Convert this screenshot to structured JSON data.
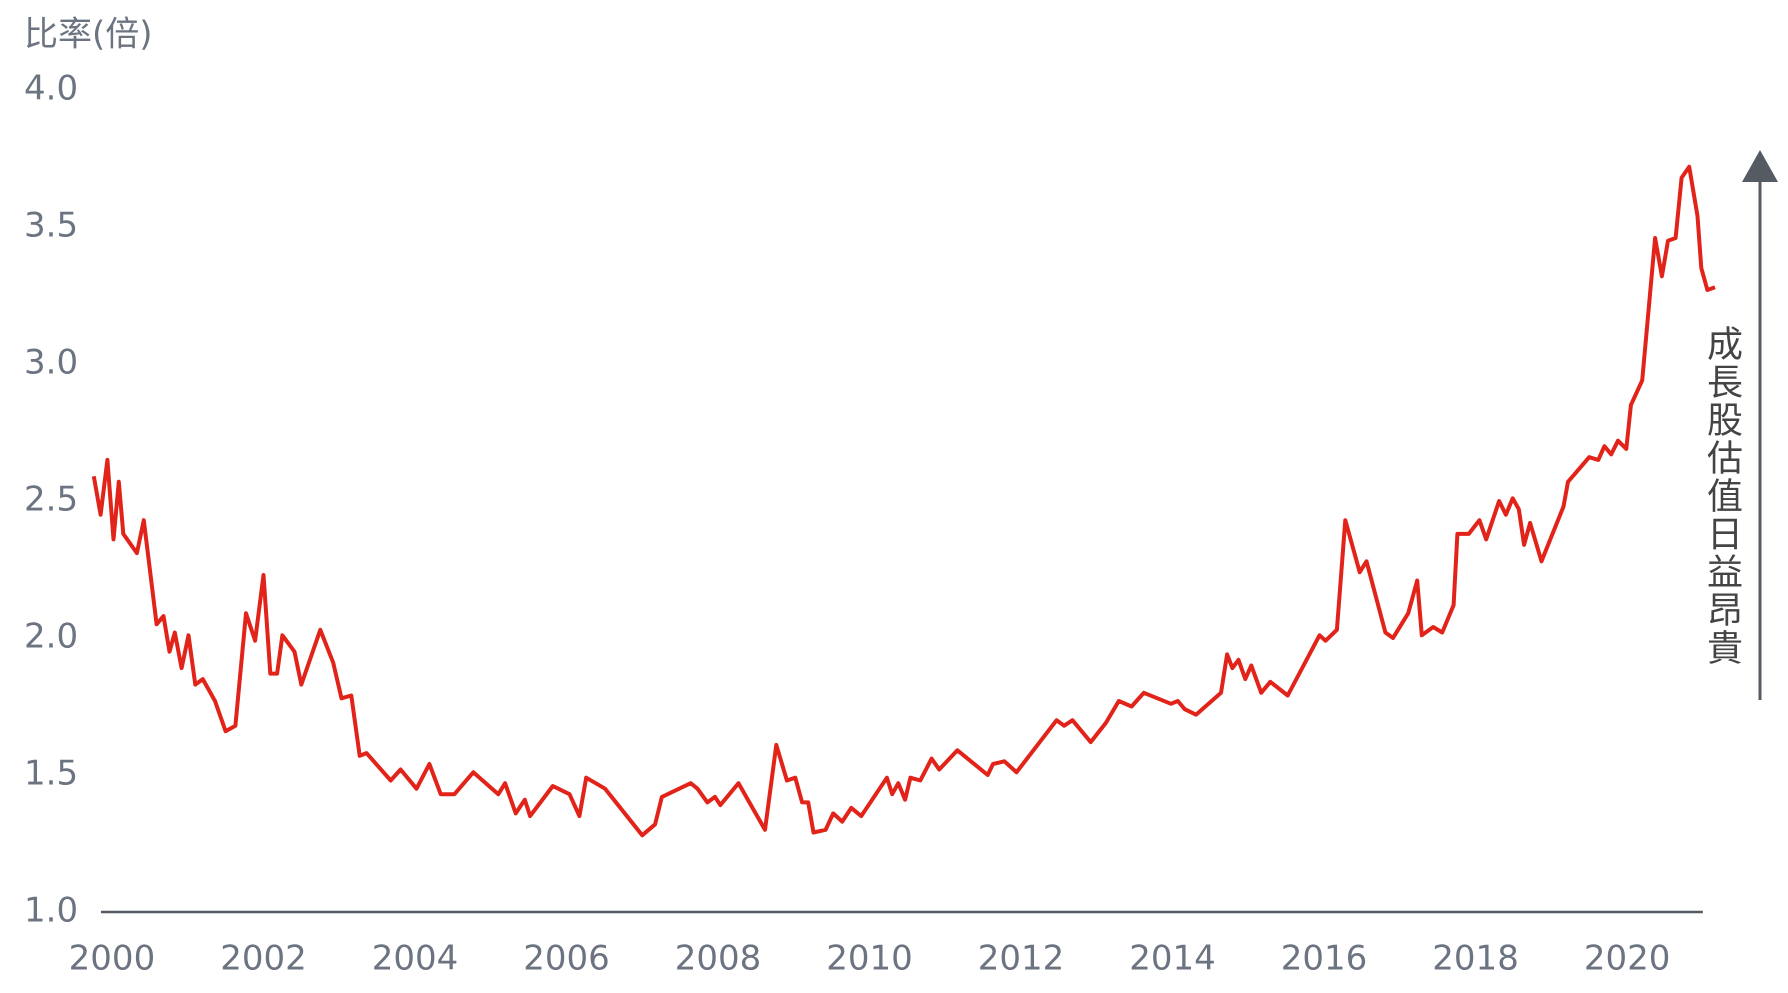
{
  "chart_data": {
    "type": "line",
    "y_label": "比率(倍)",
    "annotation": "成長股估值日益昂貴",
    "color": "#e2231a",
    "xlim": [
      1999.75,
      2021.2
    ],
    "xticks": [
      2000,
      2002,
      2004,
      2006,
      2008,
      2010,
      2012,
      2014,
      2016,
      2018,
      2020
    ],
    "ylim": [
      1.0,
      4.0
    ],
    "yticks": [
      {
        "value": 1.0,
        "label": "1.0"
      },
      1.5,
      {
        "value": 2.0,
        "label": "2.0"
      },
      2.5,
      {
        "value": 3.0,
        "label": "3.0"
      },
      3.5,
      {
        "value": 4.0,
        "label": "4.0"
      }
    ],
    "x": [
      1999.76,
      1999.85,
      1999.94,
      2000.02,
      2000.09,
      2000.15,
      2000.33,
      2000.42,
      2000.59,
      2000.68,
      2000.76,
      2000.83,
      2000.92,
      2001.01,
      2001.1,
      2001.2,
      2001.36,
      2001.5,
      2001.63,
      2001.77,
      2001.89,
      2002.0,
      2002.09,
      2002.18,
      2002.25,
      2002.41,
      2002.5,
      2002.75,
      2002.92,
      2003.03,
      2003.16,
      2003.27,
      2003.36,
      2003.68,
      2003.81,
      2004.02,
      2004.19,
      2004.34,
      2004.52,
      2004.77,
      2005.1,
      2005.19,
      2005.33,
      2005.45,
      2005.52,
      2005.82,
      2006.04,
      2006.17,
      2006.26,
      2006.51,
      2007.0,
      2007.17,
      2007.26,
      2007.64,
      2007.73,
      2007.86,
      2007.96,
      2008.03,
      2008.27,
      2008.62,
      2008.77,
      2008.91,
      2009.02,
      2009.11,
      2009.19,
      2009.26,
      2009.42,
      2009.52,
      2009.64,
      2009.76,
      2009.89,
      2010.23,
      2010.3,
      2010.38,
      2010.47,
      2010.54,
      2010.67,
      2010.82,
      2010.92,
      2011.16,
      2011.56,
      2011.63,
      2011.78,
      2011.94,
      2012.47,
      2012.57,
      2012.68,
      2012.92,
      2013.12,
      2013.29,
      2013.46,
      2013.62,
      2013.98,
      2014.07,
      2014.16,
      2014.31,
      2014.64,
      2014.72,
      2014.79,
      2014.87,
      2014.96,
      2015.04,
      2015.17,
      2015.29,
      2015.52,
      2015.94,
      2016.02,
      2016.17,
      2016.28,
      2016.47,
      2016.56,
      2016.81,
      2016.91,
      2017.11,
      2017.23,
      2017.29,
      2017.44,
      2017.56,
      2017.71,
      2017.76,
      2017.91,
      2018.05,
      2018.14,
      2018.31,
      2018.4,
      2018.49,
      2018.57,
      2018.64,
      2018.72,
      2018.87,
      2019.16,
      2019.22,
      2019.5,
      2019.62,
      2019.7,
      2019.79,
      2019.88,
      2019.99,
      2020.05,
      2020.2,
      2020.37,
      2020.46,
      2020.54,
      2020.64,
      2020.72,
      2020.82,
      2020.93,
      2020.98,
      2021.06,
      2021.16
    ],
    "values": [
      2.59,
      2.45,
      2.65,
      2.36,
      2.57,
      2.38,
      2.31,
      2.43,
      2.05,
      2.08,
      1.95,
      2.02,
      1.89,
      2.01,
      1.83,
      1.85,
      1.77,
      1.66,
      1.68,
      2.09,
      1.99,
      2.23,
      1.87,
      1.87,
      2.01,
      1.95,
      1.83,
      2.03,
      1.91,
      1.78,
      1.79,
      1.57,
      1.58,
      1.48,
      1.52,
      1.45,
      1.54,
      1.43,
      1.43,
      1.51,
      1.43,
      1.47,
      1.36,
      1.41,
      1.35,
      1.46,
      1.43,
      1.35,
      1.49,
      1.45,
      1.28,
      1.32,
      1.42,
      1.47,
      1.45,
      1.4,
      1.42,
      1.39,
      1.47,
      1.3,
      1.61,
      1.48,
      1.49,
      1.4,
      1.4,
      1.29,
      1.3,
      1.36,
      1.33,
      1.38,
      1.35,
      1.49,
      1.43,
      1.47,
      1.41,
      1.49,
      1.48,
      1.56,
      1.52,
      1.59,
      1.5,
      1.54,
      1.55,
      1.51,
      1.7,
      1.68,
      1.7,
      1.62,
      1.69,
      1.77,
      1.75,
      1.8,
      1.76,
      1.77,
      1.74,
      1.72,
      1.8,
      1.94,
      1.89,
      1.92,
      1.85,
      1.9,
      1.8,
      1.84,
      1.79,
      2.01,
      1.99,
      2.03,
      2.43,
      2.24,
      2.28,
      2.02,
      2.0,
      2.09,
      2.21,
      2.01,
      2.04,
      2.02,
      2.12,
      2.38,
      2.38,
      2.43,
      2.36,
      2.5,
      2.45,
      2.51,
      2.47,
      2.34,
      2.42,
      2.28,
      2.48,
      2.57,
      2.66,
      2.65,
      2.7,
      2.67,
      2.72,
      2.69,
      2.85,
      2.94,
      3.46,
      3.32,
      3.45,
      3.46,
      3.68,
      3.72,
      3.54,
      3.35,
      3.27,
      3.28
    ]
  }
}
